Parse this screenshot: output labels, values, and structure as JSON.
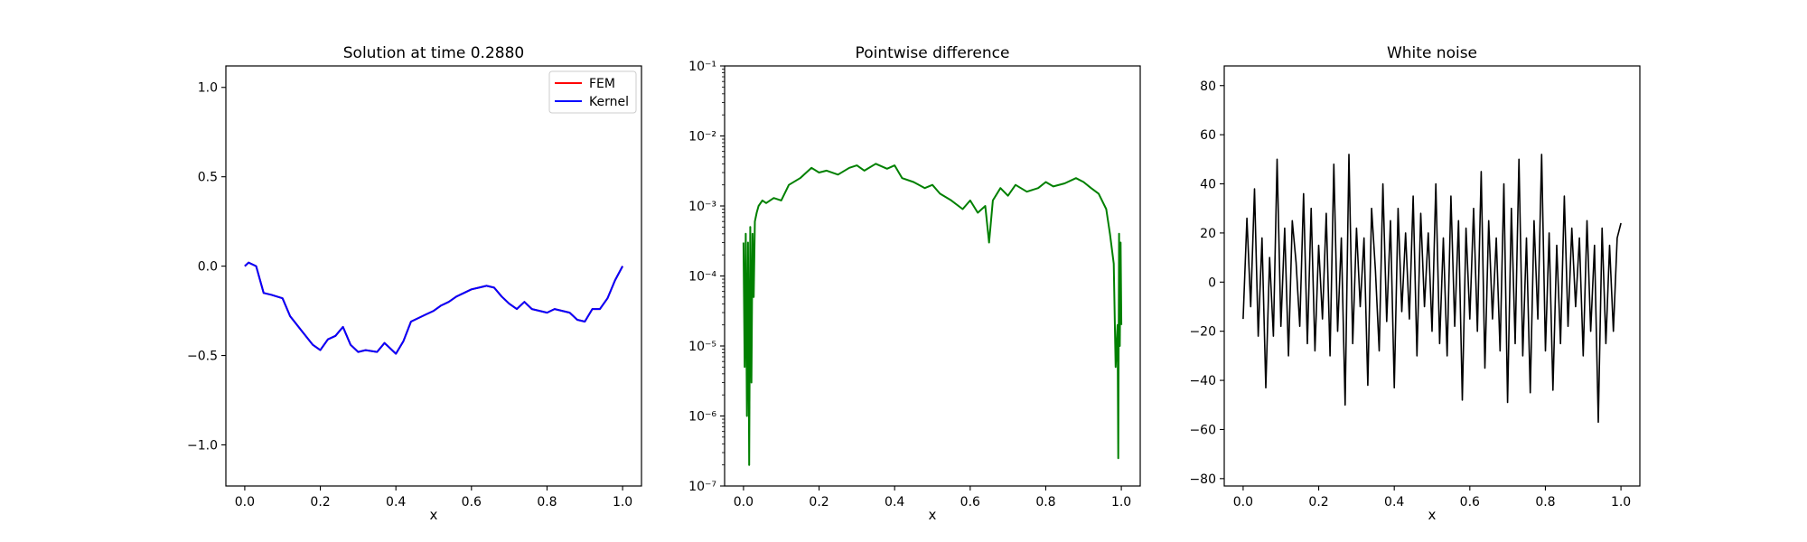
{
  "chart_data": [
    {
      "type": "line",
      "title": "Solution at time 0.2880",
      "xlabel": "x",
      "ylabel": "",
      "xlim": [
        -0.05,
        1.05
      ],
      "ylim": [
        -1.23,
        1.12
      ],
      "xticks": [
        0.0,
        0.2,
        0.4,
        0.6,
        0.8,
        1.0
      ],
      "xtick_labels": [
        "0.0",
        "0.2",
        "0.4",
        "0.6",
        "0.8",
        "1.0"
      ],
      "yticks": [
        -1.0,
        -0.5,
        0.0,
        0.5,
        1.0
      ],
      "ytick_labels": [
        "−1.0",
        "−0.5",
        "0.0",
        "0.5",
        "1.0"
      ],
      "legend": {
        "placement": "upper right",
        "entries": [
          "FEM",
          "Kernel"
        ]
      },
      "series": [
        {
          "name": "FEM",
          "color": "#ff0000",
          "x": [
            0.0,
            0.01,
            0.03,
            0.05,
            0.07,
            0.1,
            0.12,
            0.15,
            0.18,
            0.2,
            0.22,
            0.24,
            0.26,
            0.28,
            0.3,
            0.32,
            0.35,
            0.37,
            0.4,
            0.42,
            0.44,
            0.46,
            0.48,
            0.5,
            0.52,
            0.54,
            0.56,
            0.58,
            0.6,
            0.62,
            0.64,
            0.66,
            0.68,
            0.7,
            0.72,
            0.74,
            0.76,
            0.78,
            0.8,
            0.82,
            0.84,
            0.86,
            0.88,
            0.9,
            0.92,
            0.94,
            0.96,
            0.98,
            1.0
          ],
          "y": [
            0.0,
            0.02,
            0.0,
            -0.15,
            -0.16,
            -0.18,
            -0.28,
            -0.36,
            -0.44,
            -0.47,
            -0.41,
            -0.39,
            -0.34,
            -0.44,
            -0.48,
            -0.47,
            -0.48,
            -0.43,
            -0.49,
            -0.42,
            -0.31,
            -0.29,
            -0.27,
            -0.25,
            -0.22,
            -0.2,
            -0.17,
            -0.15,
            -0.13,
            -0.12,
            -0.11,
            -0.12,
            -0.17,
            -0.21,
            -0.24,
            -0.2,
            -0.24,
            -0.25,
            -0.26,
            -0.24,
            -0.25,
            -0.26,
            -0.3,
            -0.31,
            -0.24,
            -0.24,
            -0.18,
            -0.08,
            0.0
          ]
        },
        {
          "name": "Kernel",
          "color": "#0000ff",
          "x": [
            0.0,
            0.01,
            0.03,
            0.05,
            0.07,
            0.1,
            0.12,
            0.15,
            0.18,
            0.2,
            0.22,
            0.24,
            0.26,
            0.28,
            0.3,
            0.32,
            0.35,
            0.37,
            0.4,
            0.42,
            0.44,
            0.46,
            0.48,
            0.5,
            0.52,
            0.54,
            0.56,
            0.58,
            0.6,
            0.62,
            0.64,
            0.66,
            0.68,
            0.7,
            0.72,
            0.74,
            0.76,
            0.78,
            0.8,
            0.82,
            0.84,
            0.86,
            0.88,
            0.9,
            0.92,
            0.94,
            0.96,
            0.98,
            1.0
          ],
          "y": [
            0.0,
            0.02,
            0.0,
            -0.15,
            -0.16,
            -0.18,
            -0.28,
            -0.36,
            -0.44,
            -0.47,
            -0.41,
            -0.39,
            -0.34,
            -0.44,
            -0.48,
            -0.47,
            -0.48,
            -0.43,
            -0.49,
            -0.42,
            -0.31,
            -0.29,
            -0.27,
            -0.25,
            -0.22,
            -0.2,
            -0.17,
            -0.15,
            -0.13,
            -0.12,
            -0.11,
            -0.12,
            -0.17,
            -0.21,
            -0.24,
            -0.2,
            -0.24,
            -0.25,
            -0.26,
            -0.24,
            -0.25,
            -0.26,
            -0.3,
            -0.31,
            -0.24,
            -0.24,
            -0.18,
            -0.08,
            0.0
          ]
        }
      ]
    },
    {
      "type": "line",
      "title": "Pointwise difference",
      "xlabel": "x",
      "ylabel": "",
      "yscale": "log",
      "xlim": [
        -0.05,
        1.05
      ],
      "ylim": [
        1e-07,
        0.1
      ],
      "xticks": [
        0.0,
        0.2,
        0.4,
        0.6,
        0.8,
        1.0
      ],
      "xtick_labels": [
        "0.0",
        "0.2",
        "0.4",
        "0.6",
        "0.8",
        "1.0"
      ],
      "yticks": [
        1e-07,
        1e-06,
        1e-05,
        0.0001,
        0.001,
        0.01,
        0.1
      ],
      "ytick_labels": [
        "10⁻⁷",
        "10⁻⁶",
        "10⁻⁵",
        "10⁻⁴",
        "10⁻³",
        "10⁻²",
        "10⁻¹"
      ],
      "series": [
        {
          "color": "#008000",
          "x": [
            0.0,
            0.003,
            0.006,
            0.009,
            0.012,
            0.015,
            0.018,
            0.021,
            0.024,
            0.027,
            0.03,
            0.035,
            0.04,
            0.05,
            0.06,
            0.08,
            0.1,
            0.12,
            0.15,
            0.18,
            0.2,
            0.22,
            0.25,
            0.28,
            0.3,
            0.32,
            0.35,
            0.38,
            0.4,
            0.42,
            0.45,
            0.48,
            0.5,
            0.52,
            0.55,
            0.58,
            0.6,
            0.62,
            0.64,
            0.65,
            0.66,
            0.68,
            0.7,
            0.72,
            0.75,
            0.78,
            0.8,
            0.82,
            0.85,
            0.88,
            0.9,
            0.92,
            0.94,
            0.96,
            0.97,
            0.98,
            0.985,
            0.99,
            0.992,
            0.994,
            0.996,
            0.998,
            1.0
          ],
          "y": [
            0.0003,
            5e-06,
            0.0004,
            1e-06,
            0.0003,
            2e-07,
            0.0005,
            3e-06,
            0.0004,
            5e-05,
            0.0006,
            0.0008,
            0.001,
            0.0012,
            0.0011,
            0.0013,
            0.0012,
            0.002,
            0.0025,
            0.0035,
            0.003,
            0.0032,
            0.0028,
            0.0035,
            0.0038,
            0.0032,
            0.004,
            0.0034,
            0.0038,
            0.0025,
            0.0022,
            0.0018,
            0.002,
            0.0015,
            0.0012,
            0.0009,
            0.0012,
            0.0008,
            0.001,
            0.0003,
            0.0012,
            0.0018,
            0.0014,
            0.002,
            0.0016,
            0.0018,
            0.0022,
            0.0019,
            0.0021,
            0.0025,
            0.0022,
            0.0018,
            0.0015,
            0.0009,
            0.0004,
            0.00015,
            5e-06,
            2e-05,
            2.5e-07,
            0.0004,
            1e-05,
            0.0003,
            2e-05
          ]
        }
      ]
    },
    {
      "type": "line",
      "title": "White noise",
      "xlabel": "x",
      "ylabel": "",
      "xlim": [
        -0.05,
        1.05
      ],
      "ylim": [
        -83,
        88
      ],
      "xticks": [
        0.0,
        0.2,
        0.4,
        0.6,
        0.8,
        1.0
      ],
      "xtick_labels": [
        "0.0",
        "0.2",
        "0.4",
        "0.6",
        "0.8",
        "1.0"
      ],
      "yticks": [
        -80,
        -60,
        -40,
        -20,
        0,
        20,
        40,
        60,
        80
      ],
      "ytick_labels": [
        "−80",
        "−60",
        "−40",
        "−20",
        "0",
        "20",
        "40",
        "60",
        "80"
      ],
      "series": [
        {
          "color": "#000000",
          "x": [
            0.0,
            0.01,
            0.02,
            0.03,
            0.04,
            0.05,
            0.06,
            0.07,
            0.08,
            0.09,
            0.1,
            0.11,
            0.12,
            0.13,
            0.14,
            0.15,
            0.16,
            0.17,
            0.18,
            0.19,
            0.2,
            0.21,
            0.22,
            0.23,
            0.24,
            0.25,
            0.26,
            0.27,
            0.28,
            0.29,
            0.3,
            0.31,
            0.32,
            0.33,
            0.34,
            0.35,
            0.36,
            0.37,
            0.38,
            0.39,
            0.4,
            0.41,
            0.42,
            0.43,
            0.44,
            0.45,
            0.46,
            0.47,
            0.48,
            0.49,
            0.5,
            0.51,
            0.52,
            0.53,
            0.54,
            0.55,
            0.56,
            0.57,
            0.58,
            0.59,
            0.6,
            0.61,
            0.62,
            0.63,
            0.64,
            0.65,
            0.66,
            0.67,
            0.68,
            0.69,
            0.7,
            0.71,
            0.72,
            0.73,
            0.74,
            0.75,
            0.76,
            0.77,
            0.78,
            0.79,
            0.8,
            0.81,
            0.82,
            0.83,
            0.84,
            0.85,
            0.86,
            0.87,
            0.88,
            0.89,
            0.9,
            0.91,
            0.92,
            0.93,
            0.94,
            0.95,
            0.96,
            0.97,
            0.98,
            0.99,
            1.0
          ],
          "y": [
            -15,
            26,
            -10,
            38,
            -22,
            18,
            -43,
            10,
            -22,
            50,
            -18,
            22,
            -30,
            25,
            8,
            -18,
            36,
            -25,
            30,
            -28,
            15,
            -15,
            28,
            -30,
            48,
            -20,
            18,
            -50,
            52,
            -25,
            22,
            -10,
            18,
            -42,
            30,
            5,
            -28,
            40,
            -16,
            25,
            -43,
            30,
            -12,
            20,
            -15,
            35,
            -30,
            28,
            -10,
            20,
            -20,
            40,
            -25,
            18,
            -30,
            35,
            -18,
            25,
            -48,
            22,
            -15,
            30,
            -20,
            45,
            -35,
            25,
            -15,
            18,
            -28,
            40,
            -49,
            30,
            -25,
            50,
            -30,
            18,
            -45,
            25,
            -15,
            52,
            -28,
            20,
            -44,
            15,
            -25,
            35,
            -18,
            22,
            -10,
            18,
            -30,
            25,
            -20,
            15,
            -57,
            22,
            -25,
            15,
            -20,
            18,
            24
          ]
        }
      ]
    }
  ]
}
